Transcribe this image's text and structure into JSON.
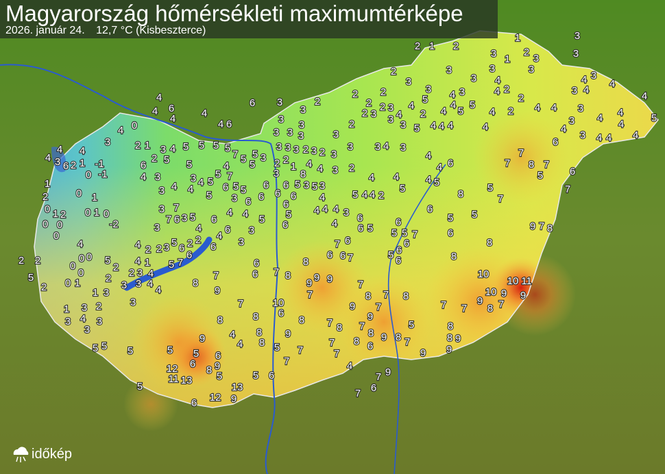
{
  "header": {
    "title": "Magyarország hőmérsékleti maximumtérképe",
    "date": "2026. január 24.",
    "max_reading": "12,7 °C (Kisbeszterce)"
  },
  "logo": {
    "text": "időkép",
    "icon": "cloud-sun-icon"
  },
  "colors": {
    "background": "#5a7a2a",
    "cold": "#4aa8e0",
    "mild": "#8ee05a",
    "warm": "#f5e04a",
    "hot": "#e23a1a",
    "water": "#2a5bd0"
  },
  "stations": [
    2,
    1,
    2,
    1,
    2,
    3,
    1,
    3,
    3,
    3,
    3,
    2,
    3,
    3,
    3,
    4,
    2,
    4,
    2,
    3,
    3,
    4,
    3,
    4,
    3,
    4,
    4,
    4,
    4,
    3,
    4,
    4,
    4,
    5,
    4,
    3,
    4,
    3,
    4,
    4,
    6,
    4,
    2,
    4,
    5,
    5,
    4,
    3,
    4,
    4,
    4,
    4,
    4,
    2,
    4,
    5,
    5,
    3,
    3,
    4,
    3,
    2,
    2,
    2,
    3,
    2,
    2,
    2,
    3,
    2,
    3,
    3,
    3,
    3,
    3,
    3,
    3,
    3,
    3,
    3,
    2,
    3,
    2,
    3,
    3,
    3,
    4,
    3,
    4,
    4,
    6,
    5,
    4,
    4,
    5,
    4,
    2,
    3,
    4,
    4,
    1,
    2,
    2,
    3,
    3,
    5,
    5,
    5,
    7,
    5,
    5,
    5,
    5,
    4,
    3,
    2,
    1,
    0,
    4,
    3,
    4,
    4,
    6,
    4,
    4,
    4,
    6,
    6,
    7,
    7,
    8,
    7,
    5,
    6,
    7,
    5,
    7,
    8,
    5,
    6,
    5,
    9,
    7,
    8,
    8,
    8,
    6,
    10,
    10,
    11,
    9,
    10,
    9,
    9,
    8,
    7,
    7,
    7,
    8,
    8,
    9,
    9,
    9,
    5,
    8,
    7,
    9,
    8,
    7,
    9,
    7,
    8,
    7,
    8,
    9,
    7,
    9,
    9,
    9,
    7,
    8,
    6,
    7,
    6,
    7,
    6,
    6,
    5,
    6,
    5,
    6,
    6,
    6,
    7,
    5,
    5,
    6,
    4,
    4,
    4,
    4,
    3,
    5,
    4,
    4,
    2,
    4,
    3,
    3,
    5,
    8,
    5,
    6,
    6,
    5,
    6,
    6,
    6,
    6,
    6,
    6,
    3,
    5,
    5,
    7,
    6,
    5,
    4,
    5,
    4,
    3,
    4,
    4,
    3,
    3,
    4,
    6,
    5,
    5,
    5,
    4,
    6,
    4,
    5,
    3,
    3,
    6,
    4,
    6,
    2,
    2,
    6,
    5,
    3,
    2,
    3,
    3,
    7,
    6,
    3,
    7,
    5,
    4,
    4,
    4,
    1,
    2,
    4,
    3,
    2,
    3,
    3,
    4,
    5,
    2,
    2,
    1,
    3,
    3,
    4,
    5,
    7,
    6,
    8,
    7,
    9,
    6,
    6,
    7,
    8,
    10,
    6,
    7,
    8,
    8,
    9,
    4,
    4,
    8,
    8,
    5,
    9,
    8,
    7,
    7,
    7,
    8,
    7,
    7,
    8,
    6,
    4,
    7,
    9,
    6,
    7,
    6,
    5,
    13,
    9,
    12,
    6,
    13,
    11,
    12,
    8,
    9,
    6,
    5,
    5,
    6,
    5,
    5,
    5,
    5,
    5,
    3,
    4,
    3,
    2,
    3,
    3,
    1,
    1,
    0,
    0,
    0,
    0,
    0,
    4,
    0,
    0,
    0,
    0,
    1,
    2,
    2,
    1,
    0,
    1,
    0,
    1,
    0,
    -2,
    -1,
    -1,
    1,
    0,
    2,
    3,
    4,
    4,
    4,
    6,
    2,
    2,
    5,
    2,
    2
  ]
}
